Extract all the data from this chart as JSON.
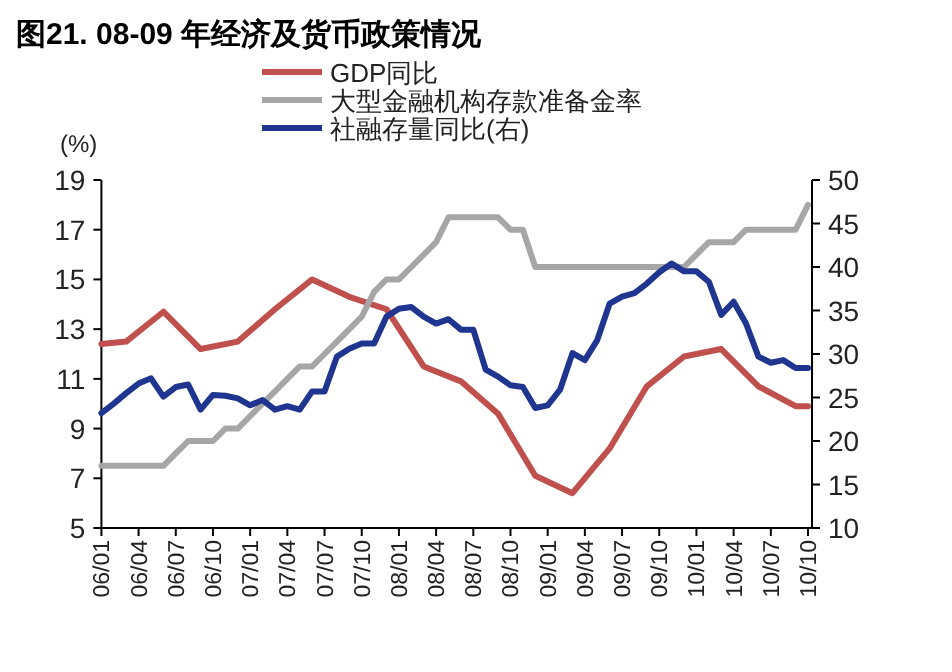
{
  "chart_data": {
    "type": "line",
    "title": "图21. 08-09 年经济及货币政策情况",
    "ylabel": "(%)",
    "categories": [
      "06/01",
      null,
      null,
      "06/04",
      null,
      null,
      "06/07",
      null,
      null,
      "06/10",
      null,
      null,
      "07/01",
      null,
      null,
      "07/04",
      null,
      null,
      "07/07",
      null,
      null,
      "07/10",
      null,
      null,
      "08/01",
      null,
      null,
      "08/04",
      null,
      null,
      "08/07",
      null,
      null,
      "08/10",
      null,
      null,
      "09/01",
      null,
      null,
      "09/04",
      null,
      null,
      "09/07",
      null,
      null,
      "09/10",
      null,
      null,
      "10/01",
      null,
      null,
      "10/04",
      null,
      null,
      "10/07",
      null,
      null,
      "10/10"
    ],
    "series": [
      {
        "name": "GDP同比",
        "color": "#c0504d",
        "values": [
          12.4,
          null,
          12.5,
          null,
          null,
          13.7,
          null,
          null,
          12.2,
          null,
          null,
          12.5,
          null,
          null,
          13.8,
          null,
          null,
          15.0,
          null,
          null,
          14.3,
          null,
          null,
          13.8,
          null,
          null,
          11.5,
          null,
          null,
          10.9,
          null,
          null,
          9.6,
          null,
          null,
          7.1,
          null,
          null,
          6.4,
          null,
          null,
          8.2,
          null,
          null,
          10.7,
          null,
          null,
          11.9,
          null,
          null,
          12.2,
          null,
          null,
          10.7,
          null,
          null,
          9.9,
          9.9
        ]
      },
      {
        "name": "大型金融机构存款准备金率",
        "color": "#a6a6a6",
        "values": [
          7.5,
          7.5,
          7.5,
          7.5,
          7.5,
          7.5,
          8.0,
          8.5,
          8.5,
          8.5,
          9.0,
          9.0,
          9.5,
          10.0,
          10.5,
          11.0,
          11.5,
          11.5,
          12.0,
          12.5,
          13.0,
          13.5,
          14.5,
          15.0,
          15.0,
          15.5,
          16.0,
          16.5,
          17.5,
          17.5,
          17.5,
          17.5,
          17.5,
          17.0,
          17.0,
          15.5,
          15.5,
          15.5,
          15.5,
          15.5,
          15.5,
          15.5,
          15.5,
          15.5,
          15.5,
          15.5,
          15.5,
          15.5,
          16.0,
          16.5,
          16.5,
          16.5,
          17.0,
          17.0,
          17.0,
          17.0,
          17.0,
          18.0
        ]
      },
      {
        "name": "社融存量同比(右)",
        "color": "#1f3590",
        "axis": "y2",
        "values": [
          23.2,
          24.3,
          25.5,
          26.6,
          27.2,
          25.1,
          26.2,
          26.5,
          23.6,
          25.3,
          25.2,
          24.9,
          24.1,
          24.7,
          23.6,
          24.0,
          23.6,
          25.7,
          25.7,
          29.7,
          30.6,
          31.2,
          31.2,
          34.3,
          35.2,
          35.4,
          34.3,
          33.5,
          34.0,
          32.8,
          32.8,
          28.2,
          27.4,
          26.4,
          26.2,
          23.8,
          24.1,
          25.9,
          30.1,
          29.3,
          31.6,
          35.8,
          36.6,
          37.0,
          38.1,
          39.4,
          40.4,
          39.5,
          39.5,
          38.3,
          34.5,
          36.0,
          33.5,
          29.7,
          29.0,
          29.3,
          28.4,
          28.4
        ]
      }
    ],
    "ylim": [
      5,
      19
    ],
    "yticks": [
      5,
      7,
      9,
      11,
      13,
      15,
      17,
      19
    ],
    "y2lim": [
      10,
      50
    ],
    "y2ticks": [
      10,
      15,
      20,
      25,
      30,
      35,
      40,
      45,
      50
    ],
    "legend": "top left",
    "grid": false
  }
}
